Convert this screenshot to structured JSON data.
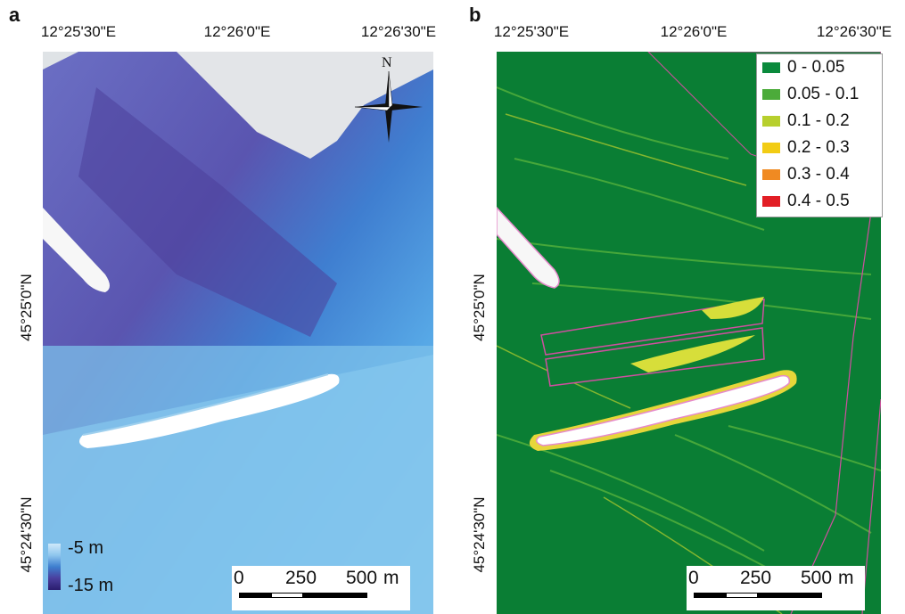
{
  "panels": {
    "a": {
      "letter": "a",
      "lon_labels": [
        "12°25'30\"E",
        "12°26'0\"E",
        "12°26'30\"E"
      ],
      "lat_labels": [
        "45°25'0\"N",
        "45°24'30\"N"
      ],
      "north_label": "N",
      "depth_legend": {
        "top": "-5 m",
        "bottom": "-15 m"
      },
      "scale_bar": {
        "zero": "0",
        "mid": "250",
        "end": "500",
        "unit": "m"
      }
    },
    "b": {
      "letter": "b",
      "lon_labels": [
        "12°25'30\"E",
        "12°26'0\"E",
        "12°26'30\"E"
      ],
      "lat_labels": [
        "45°25'0\"N",
        "45°24'30\"N"
      ],
      "legend": [
        {
          "label": "0 - 0.05",
          "color": "#0a8a3c"
        },
        {
          "label": "0.05 - 0.1",
          "color": "#4cab3a"
        },
        {
          "label": "0.1 - 0.2",
          "color": "#b7cf2d"
        },
        {
          "label": "0.2 - 0.3",
          "color": "#f2cc14"
        },
        {
          "label": "0.3 - 0.4",
          "color": "#f08a22"
        },
        {
          "label": "0.4 - 0.5",
          "color": "#e21e25"
        }
      ],
      "scale_bar": {
        "zero": "0",
        "mid": "250",
        "end": "500",
        "unit": "m"
      }
    }
  },
  "colors": {
    "deep": "#4b3f9c",
    "shallow": "#8ecaee",
    "land": "#e6e8ea",
    "jetty": "#ffffff",
    "green_bg": "#0a7e34",
    "outline": "#d04fa0"
  }
}
